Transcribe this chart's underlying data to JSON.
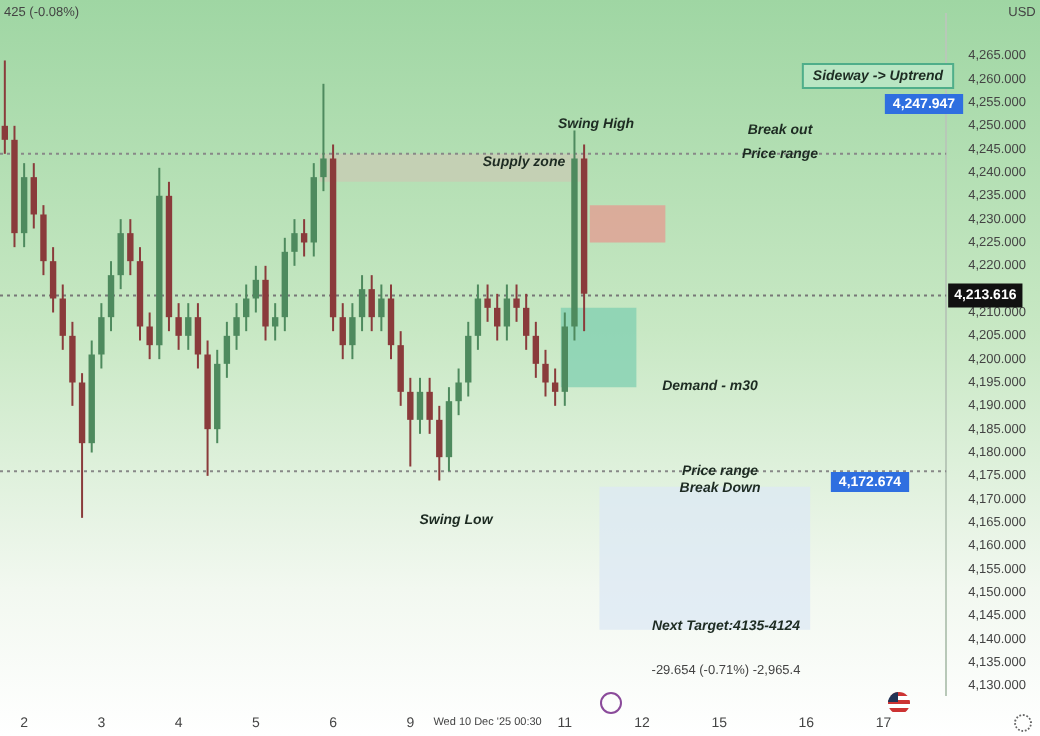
{
  "chart_data": {
    "type": "candlestick",
    "categories": [
      null,
      null,
      "2",
      null,
      null,
      null,
      null,
      null,
      null,
      null,
      "3",
      null,
      null,
      null,
      null,
      null,
      null,
      null,
      "4",
      null,
      null,
      null,
      null,
      null,
      null,
      null,
      "5",
      null,
      null,
      null,
      null,
      null,
      null,
      null,
      "6",
      null,
      null,
      null,
      null,
      null,
      null,
      null,
      "9",
      null,
      null,
      null,
      null,
      null,
      null,
      null,
      "Wed 10 Dec '25 00:30",
      null,
      null,
      null,
      null,
      null,
      null,
      null,
      "11",
      null,
      null,
      null,
      null,
      null,
      null,
      null,
      "12",
      null,
      null,
      null,
      null,
      null,
      null,
      null,
      "15",
      null,
      null,
      null,
      null,
      null,
      null,
      null,
      null,
      "16",
      null,
      null,
      null,
      null,
      null,
      null,
      null,
      "17",
      null,
      null,
      null,
      null,
      null,
      null
    ],
    "ohlc": [
      [
        4250,
        4264,
        4244,
        4247
      ],
      [
        4247,
        4250,
        4224,
        4227
      ],
      [
        4227,
        4242,
        4224,
        4239
      ],
      [
        4239,
        4242,
        4228,
        4231
      ],
      [
        4231,
        4233,
        4218,
        4221
      ],
      [
        4221,
        4224,
        4210,
        4213
      ],
      [
        4213,
        4216,
        4202,
        4205
      ],
      [
        4205,
        4208,
        4190,
        4195
      ],
      [
        4195,
        4197,
        4166,
        4182
      ],
      [
        4182,
        4204,
        4180,
        4201
      ],
      [
        4201,
        4212,
        4198,
        4209
      ],
      [
        4209,
        4221,
        4206,
        4218
      ],
      [
        4218,
        4230,
        4215,
        4227
      ],
      [
        4227,
        4230,
        4218,
        4221
      ],
      [
        4221,
        4224,
        4204,
        4207
      ],
      [
        4207,
        4210,
        4200,
        4203
      ],
      [
        4203,
        4241,
        4200,
        4235
      ],
      [
        4235,
        4238,
        4206,
        4209
      ],
      [
        4209,
        4212,
        4202,
        4205
      ],
      [
        4205,
        4212,
        4202,
        4209
      ],
      [
        4209,
        4212,
        4198,
        4201
      ],
      [
        4201,
        4204,
        4175,
        4185
      ],
      [
        4185,
        4202,
        4182,
        4199
      ],
      [
        4199,
        4208,
        4196,
        4205
      ],
      [
        4205,
        4212,
        4202,
        4209
      ],
      [
        4209,
        4216,
        4206,
        4213
      ],
      [
        4213,
        4220,
        4210,
        4217
      ],
      [
        4217,
        4220,
        4204,
        4207
      ],
      [
        4207,
        4212,
        4204,
        4209
      ],
      [
        4209,
        4226,
        4206,
        4223
      ],
      [
        4223,
        4230,
        4220,
        4227
      ],
      [
        4227,
        4230,
        4222,
        4225
      ],
      [
        4225,
        4242,
        4222,
        4239
      ],
      [
        4239,
        4259,
        4236,
        4243
      ],
      [
        4243,
        4246,
        4206,
        4209
      ],
      [
        4209,
        4212,
        4200,
        4203
      ],
      [
        4203,
        4212,
        4200,
        4209
      ],
      [
        4209,
        4218,
        4206,
        4215
      ],
      [
        4215,
        4218,
        4206,
        4209
      ],
      [
        4209,
        4216,
        4206,
        4213
      ],
      [
        4213,
        4216,
        4200,
        4203
      ],
      [
        4203,
        4206,
        4190,
        4193
      ],
      [
        4193,
        4196,
        4177,
        4187
      ],
      [
        4187,
        4196,
        4184,
        4193
      ],
      [
        4193,
        4196,
        4184,
        4187
      ],
      [
        4187,
        4190,
        4174,
        4179
      ],
      [
        4179,
        4194,
        4176,
        4191
      ],
      [
        4191,
        4198,
        4188,
        4195
      ],
      [
        4195,
        4208,
        4192,
        4205
      ],
      [
        4205,
        4216,
        4202,
        4213
      ],
      [
        4213,
        4216,
        4208,
        4211
      ],
      [
        4211,
        4214,
        4204,
        4207
      ],
      [
        4207,
        4216,
        4204,
        4213
      ],
      [
        4213,
        4216,
        4208,
        4211
      ],
      [
        4211,
        4214,
        4202,
        4205
      ],
      [
        4205,
        4208,
        4196,
        4199
      ],
      [
        4199,
        4202,
        4192,
        4195
      ],
      [
        4195,
        4198,
        4190,
        4193
      ],
      [
        4193,
        4210,
        4190,
        4207
      ],
      [
        4207,
        4249,
        4204,
        4243
      ],
      [
        4243,
        4246,
        4206,
        4214
      ],
      null,
      null,
      null,
      null,
      null,
      null,
      null,
      null,
      null,
      null,
      null,
      null,
      null,
      null,
      null,
      null,
      null,
      null,
      null,
      null,
      null,
      null,
      null,
      null,
      null,
      null,
      null,
      null,
      null,
      null,
      null,
      null,
      null,
      null,
      null,
      null,
      null
    ],
    "colors": [
      "#8a3b3b",
      "#8a3b3b",
      "#4e8a5e",
      "#8a3b3b",
      "#8a3b3b",
      "#8a3b3b",
      "#8a3b3b",
      "#8a3b3b",
      "#8a3b3b",
      "#4e8a5e",
      "#4e8a5e",
      "#4e8a5e",
      "#4e8a5e",
      "#8a3b3b",
      "#8a3b3b",
      "#8a3b3b",
      "#4e8a5e",
      "#8a3b3b",
      "#8a3b3b",
      "#4e8a5e",
      "#8a3b3b",
      "#8a3b3b",
      "#4e8a5e",
      "#4e8a5e",
      "#4e8a5e",
      "#4e8a5e",
      "#4e8a5e",
      "#8a3b3b",
      "#4e8a5e",
      "#4e8a5e",
      "#4e8a5e",
      "#8a3b3b",
      "#4e8a5e",
      "#4e8a5e",
      "#8a3b3b",
      "#8a3b3b",
      "#4e8a5e",
      "#4e8a5e",
      "#8a3b3b",
      "#4e8a5e",
      "#8a3b3b",
      "#8a3b3b",
      "#8a3b3b",
      "#4e8a5e",
      "#8a3b3b",
      "#8a3b3b",
      "#4e8a5e",
      "#4e8a5e",
      "#4e8a5e",
      "#4e8a5e",
      "#8a3b3b",
      "#8a3b3b",
      "#4e8a5e",
      "#8a3b3b",
      "#8a3b3b",
      "#8a3b3b",
      "#8a3b3b",
      "#8a3b3b",
      "#4e8a5e",
      "#4e8a5e",
      "#8a3b3b",
      null,
      null,
      null,
      null,
      null,
      null,
      null,
      null,
      null,
      null,
      null,
      null,
      null,
      null,
      null,
      null,
      null,
      null,
      null,
      null,
      null,
      null,
      null,
      null,
      null,
      null,
      null,
      null,
      null,
      null,
      null,
      null,
      null,
      null,
      null,
      null,
      null
    ],
    "ylim": [
      4128,
      4274
    ],
    "yticks": [
      {
        "value": 4130,
        "label": "4,130.000"
      },
      {
        "value": 4135,
        "label": "4,135.000"
      },
      {
        "value": 4140,
        "label": "4,140.000"
      },
      {
        "value": 4145,
        "label": "4,145.000"
      },
      {
        "value": 4150,
        "label": "4,150.000"
      },
      {
        "value": 4155,
        "label": "4,155.000"
      },
      {
        "value": 4160,
        "label": "4,160.000"
      },
      {
        "value": 4165,
        "label": "4,165.000"
      },
      {
        "value": 4170,
        "label": "4,170.000"
      },
      {
        "value": 4175,
        "label": "4,175.000"
      },
      {
        "value": 4180,
        "label": "4,180.000"
      },
      {
        "value": 4185,
        "label": "4,185.000"
      },
      {
        "value": 4190,
        "label": "4,190.000"
      },
      {
        "value": 4195,
        "label": "4,195.000"
      },
      {
        "value": 4200,
        "label": "4,200.000"
      },
      {
        "value": 4205,
        "label": "4,205.000"
      },
      {
        "value": 4210,
        "label": "4,210.000"
      },
      {
        "value": 4220,
        "label": "4,220.000"
      },
      {
        "value": 4225,
        "label": "4,225.000"
      },
      {
        "value": 4230,
        "label": "4,230.000"
      },
      {
        "value": 4235,
        "label": "4,235.000"
      },
      {
        "value": 4240,
        "label": "4,240.000"
      },
      {
        "value": 4245,
        "label": "4,245.000"
      },
      {
        "value": 4250,
        "label": "4,250.000"
      },
      {
        "value": 4255,
        "label": "4,255.000"
      },
      {
        "value": 4260,
        "label": "4,260.000"
      },
      {
        "value": 4265,
        "label": "4,265.000"
      }
    ],
    "ref_lines": [
      {
        "axis": "y",
        "value": 4213.616,
        "label": "4,213.616",
        "color": "#777777",
        "line_style": "dotted"
      },
      {
        "axis": "y",
        "value": 4244,
        "color": "#888888",
        "line_style": "dotted"
      },
      {
        "axis": "y",
        "value": 4176,
        "color": "#888888",
        "line_style": "dotted"
      }
    ],
    "bands": [
      {
        "axis": "y",
        "from": 4238,
        "to": 4244,
        "color": "#c9cbb4"
      },
      {
        "axis": "y",
        "from": 4225,
        "to": 4233,
        "color": "#e59a90"
      },
      {
        "axis": "y",
        "from": 4194,
        "to": 4211,
        "color": "#7fcfb0"
      },
      {
        "axis": "y",
        "from": 4142,
        "to": 4172.674,
        "color": "#dce8f4"
      }
    ],
    "annotations": [
      "425 (-0.08%)",
      "USD",
      "Swing High",
      "Break out",
      {
        "text": "Price range",
        "y": 4244
      },
      "Supply zone",
      "Sideway -> Uptrend",
      "Demand - m30",
      {
        "text": "Price range",
        "y": 4176
      },
      {
        "text": "Break Down",
        "y": 4172.3
      },
      "Swing Low",
      {
        "text": "Next Target:4135-4124",
        "y": 4142.7
      },
      "-29.654 (-0.71%) -2,965.4",
      "4,247.947",
      "4,172.674"
    ]
  }
}
